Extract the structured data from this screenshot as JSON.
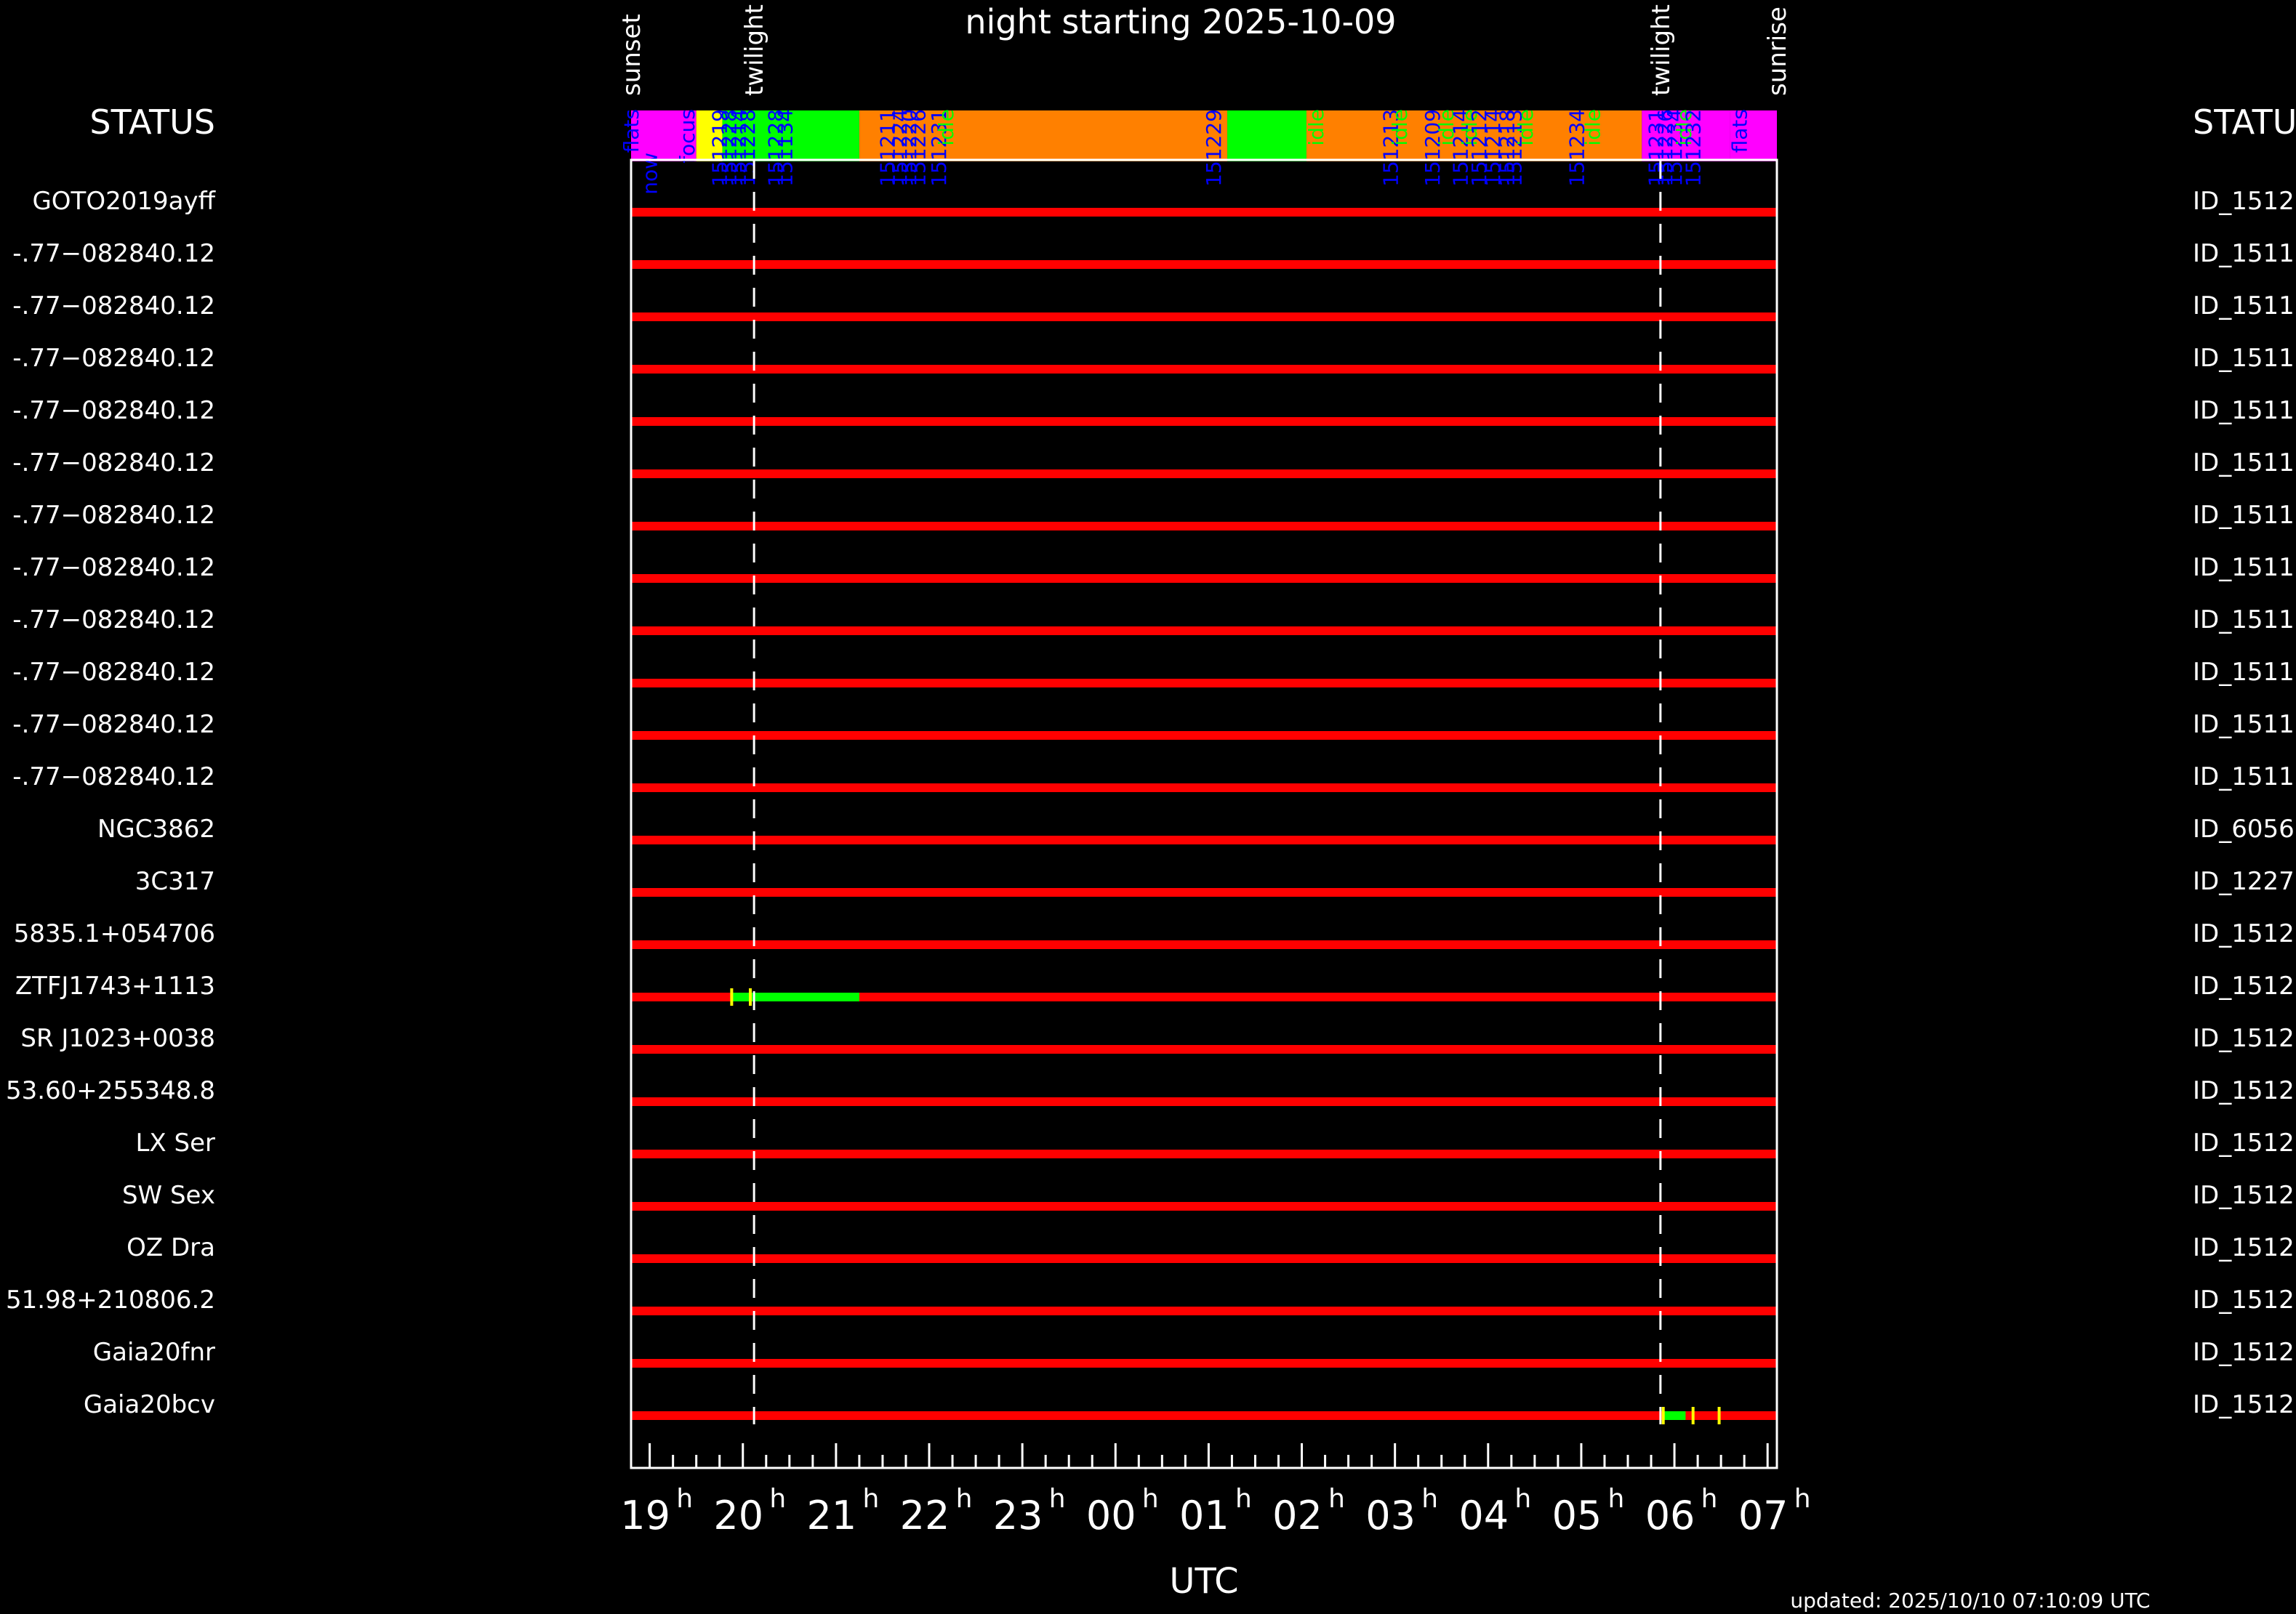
{
  "chart_data": {
    "type": "timeline",
    "title": "night starting 2025-10-09",
    "xlabel": "UTC",
    "updated": "updated: 2025/10/10 07:10:09 UTC",
    "status_label_left": "STATUS",
    "status_label_right": "STATUS",
    "x_range_hours": [
      18.8,
      31.1
    ],
    "ticks": [
      {
        "h": 19,
        "label": "19"
      },
      {
        "h": 20,
        "label": "20"
      },
      {
        "h": 21,
        "label": "21"
      },
      {
        "h": 22,
        "label": "22"
      },
      {
        "h": 23,
        "label": "23"
      },
      {
        "h": 24,
        "label": "00"
      },
      {
        "h": 25,
        "label": "01"
      },
      {
        "h": 26,
        "label": "02"
      },
      {
        "h": 27,
        "label": "03"
      },
      {
        "h": 28,
        "label": "04"
      },
      {
        "h": 29,
        "label": "05"
      },
      {
        "h": 30,
        "label": "06"
      },
      {
        "h": 31,
        "label": "07"
      }
    ],
    "tick_suffix": "h",
    "sun_events": [
      {
        "h": 18.8,
        "label": "sunset",
        "dashed": false
      },
      {
        "h": 20.12,
        "label": "twilight",
        "dashed": true
      },
      {
        "h": 29.85,
        "label": "twilight",
        "dashed": true
      },
      {
        "h": 31.1,
        "label": "sunrise",
        "dashed": false
      }
    ],
    "status_colors": {
      "magenta": "#FF00FF",
      "yellow": "#FFFF00",
      "green": "#00FF00",
      "orange": "#FF8000",
      "red": "#FF0000",
      "axis": "#FFFFFF",
      "annotation": "#0000FF"
    },
    "status_bar": [
      {
        "start": 18.8,
        "end": 19.5,
        "color": "magenta"
      },
      {
        "start": 19.5,
        "end": 19.78,
        "color": "yellow"
      },
      {
        "start": 19.78,
        "end": 21.25,
        "color": "green"
      },
      {
        "start": 21.25,
        "end": 25.2,
        "color": "orange"
      },
      {
        "start": 25.2,
        "end": 26.05,
        "color": "green"
      },
      {
        "start": 26.05,
        "end": 29.65,
        "color": "orange"
      },
      {
        "start": 29.65,
        "end": 30.6,
        "color": "magenta"
      },
      {
        "start": 30.6,
        "end": 31.1,
        "color": "magenta"
      }
    ],
    "annotations": [
      {
        "h": 18.8,
        "text": "flats",
        "color": "blue"
      },
      {
        "h": 19.0,
        "text": "now",
        "color": "blue"
      },
      {
        "h": 19.4,
        "text": "focus",
        "color": "blue"
      },
      {
        "h": 19.75,
        "text": "151219",
        "color": "blue"
      },
      {
        "h": 19.85,
        "text": "151228",
        "color": "blue"
      },
      {
        "h": 19.95,
        "text": "151214",
        "color": "blue"
      },
      {
        "h": 20.05,
        "text": "151228",
        "color": "blue"
      },
      {
        "h": 20.35,
        "text": "151228",
        "color": "blue"
      },
      {
        "h": 20.45,
        "text": "151134",
        "color": "blue"
      },
      {
        "h": 21.55,
        "text": "151211",
        "color": "blue"
      },
      {
        "h": 21.68,
        "text": "151224",
        "color": "blue"
      },
      {
        "h": 21.78,
        "text": "151220",
        "color": "blue"
      },
      {
        "h": 21.88,
        "text": "151226",
        "color": "blue"
      },
      {
        "h": 22.1,
        "text": "151231",
        "color": "blue"
      },
      {
        "h": 22.18,
        "text": "idle",
        "color": "green"
      },
      {
        "h": 25.05,
        "text": "151229",
        "color": "blue"
      },
      {
        "h": 26.15,
        "text": "idle",
        "color": "green"
      },
      {
        "h": 26.95,
        "text": "151213",
        "color": "blue"
      },
      {
        "h": 27.05,
        "text": "idle",
        "color": "green"
      },
      {
        "h": 27.4,
        "text": "151209",
        "color": "blue"
      },
      {
        "h": 27.55,
        "text": "idle",
        "color": "green"
      },
      {
        "h": 27.7,
        "text": "151214",
        "color": "blue"
      },
      {
        "h": 27.8,
        "text": "idle",
        "color": "green"
      },
      {
        "h": 27.9,
        "text": "151212",
        "color": "blue"
      },
      {
        "h": 28.05,
        "text": "151214",
        "color": "blue"
      },
      {
        "h": 28.2,
        "text": "151218",
        "color": "blue"
      },
      {
        "h": 28.28,
        "text": "151213",
        "color": "blue"
      },
      {
        "h": 28.4,
        "text": "idle",
        "color": "green"
      },
      {
        "h": 28.95,
        "text": "151234",
        "color": "blue"
      },
      {
        "h": 29.12,
        "text": "idle",
        "color": "green"
      },
      {
        "h": 29.8,
        "text": "151231",
        "color": "blue"
      },
      {
        "h": 29.9,
        "text": "151226",
        "color": "blue"
      },
      {
        "h": 30.0,
        "text": "151234",
        "color": "blue"
      },
      {
        "h": 30.1,
        "text": "idle",
        "color": "green"
      },
      {
        "h": 30.2,
        "text": "151232",
        "color": "blue"
      },
      {
        "h": 30.7,
        "text": "flats",
        "color": "blue"
      }
    ],
    "rows": [
      {
        "name": "GOTO2019ayff",
        "id": "ID_1512",
        "segments": []
      },
      {
        "name": "-.77−082840.12",
        "id": "ID_1511",
        "segments": []
      },
      {
        "name": "-.77−082840.12",
        "id": "ID_1511",
        "segments": []
      },
      {
        "name": "-.77−082840.12",
        "id": "ID_1511",
        "segments": []
      },
      {
        "name": "-.77−082840.12",
        "id": "ID_1511",
        "segments": []
      },
      {
        "name": "-.77−082840.12",
        "id": "ID_1511",
        "segments": []
      },
      {
        "name": "-.77−082840.12",
        "id": "ID_1511",
        "segments": []
      },
      {
        "name": "-.77−082840.12",
        "id": "ID_1511",
        "segments": []
      },
      {
        "name": "-.77−082840.12",
        "id": "ID_1511",
        "segments": []
      },
      {
        "name": "-.77−082840.12",
        "id": "ID_1511",
        "segments": []
      },
      {
        "name": "-.77−082840.12",
        "id": "ID_1511",
        "segments": []
      },
      {
        "name": "-.77−082840.12",
        "id": "ID_1511",
        "segments": []
      },
      {
        "name": "NGC3862",
        "id": "ID_6056",
        "segments": []
      },
      {
        "name": "3C317",
        "id": "ID_1227",
        "segments": []
      },
      {
        "name": "5835.1+054706",
        "id": "ID_1512",
        "segments": []
      },
      {
        "name": "ZTFJ1743+1113",
        "id": "ID_1512",
        "segments": [
          {
            "start": 19.88,
            "end": 21.25
          }
        ],
        "marks": [
          19.88,
          20.08
        ]
      },
      {
        "name": "SR J1023+0038",
        "id": "ID_1512",
        "segments": []
      },
      {
        "name": "53.60+255348.8",
        "id": "ID_1512",
        "segments": []
      },
      {
        "name": "LX Ser",
        "id": "ID_1512",
        "segments": []
      },
      {
        "name": "SW Sex",
        "id": "ID_1512",
        "segments": []
      },
      {
        "name": "OZ Dra",
        "id": "ID_1512",
        "segments": []
      },
      {
        "name": "51.98+210806.2",
        "id": "ID_1512",
        "segments": []
      },
      {
        "name": "Gaia20fnr",
        "id": "ID_1512",
        "segments": []
      },
      {
        "name": "Gaia20bcv",
        "id": "ID_1512",
        "segments": [
          {
            "start": 29.88,
            "end": 30.12
          }
        ],
        "marks": [
          29.88,
          30.2,
          30.48
        ]
      }
    ]
  }
}
